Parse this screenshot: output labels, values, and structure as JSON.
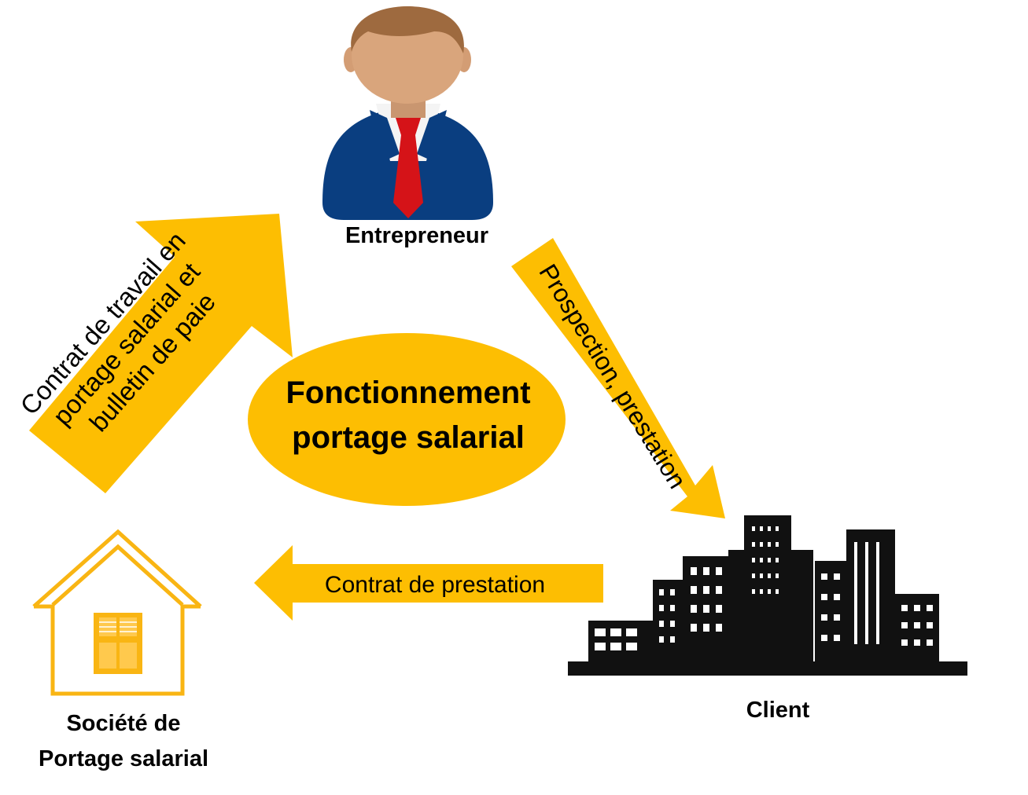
{
  "center": {
    "line1": "Fonctionnement",
    "line2": "portage salarial"
  },
  "nodes": {
    "entrepreneur": {
      "label": "Entrepreneur",
      "icon": "businessman-icon"
    },
    "client": {
      "label": "Client",
      "icon": "city-buildings-icon"
    },
    "societe": {
      "line1": "Société de",
      "line2": "Portage salarial",
      "icon": "house-icon"
    }
  },
  "arrows": {
    "contrat_travail": {
      "line1": "Contrat de travail en",
      "line2": "portage salarial et",
      "line3": "bulletin de paie"
    },
    "prospection": {
      "label": "Prospection, prestation"
    },
    "contrat_prestation": {
      "label": "Contrat de prestation"
    }
  },
  "colors": {
    "arrow": "#FDBE02",
    "ellipse": "#FDBE02",
    "house": "#F9B513",
    "suit": "#0A3E80",
    "tie": "#D51318",
    "skin": "#D9A57C",
    "hair": "#9E6A3F",
    "building": "#111111"
  }
}
